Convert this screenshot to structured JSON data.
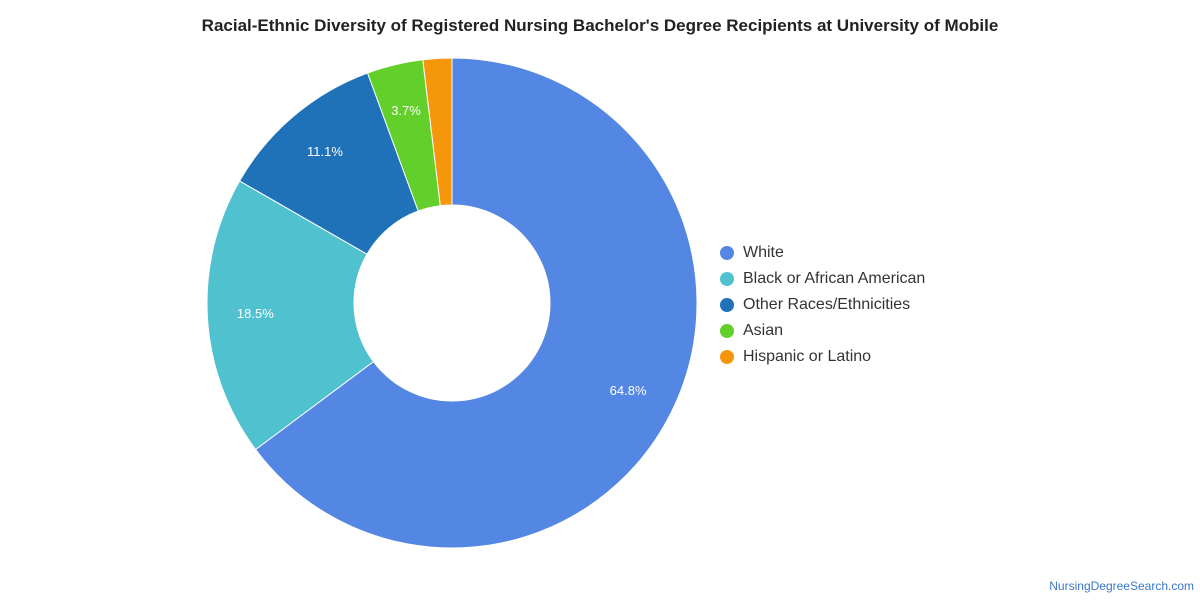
{
  "chart_data": {
    "type": "pie",
    "donut": true,
    "title": "Racial-Ethnic Diversity of Registered Nursing Bachelor's Degree Recipients at University of Mobile",
    "slices": [
      {
        "name": "White",
        "value": 64.8,
        "label": "64.8%",
        "color": "#5486e3"
      },
      {
        "name": "Black or African American",
        "value": 18.5,
        "label": "18.5%",
        "color": "#50c1cf"
      },
      {
        "name": "Other Races/Ethnicities",
        "value": 11.1,
        "label": "11.1%",
        "color": "#1f72b8"
      },
      {
        "name": "Asian",
        "value": 3.7,
        "label": "3.7%",
        "color": "#63cf2b"
      },
      {
        "name": "Hispanic or Latino",
        "value": 1.9,
        "label": "",
        "color": "#f6960a"
      }
    ],
    "legend_position": "right"
  },
  "footer": {
    "source": "NursingDegreeSearch.com"
  }
}
